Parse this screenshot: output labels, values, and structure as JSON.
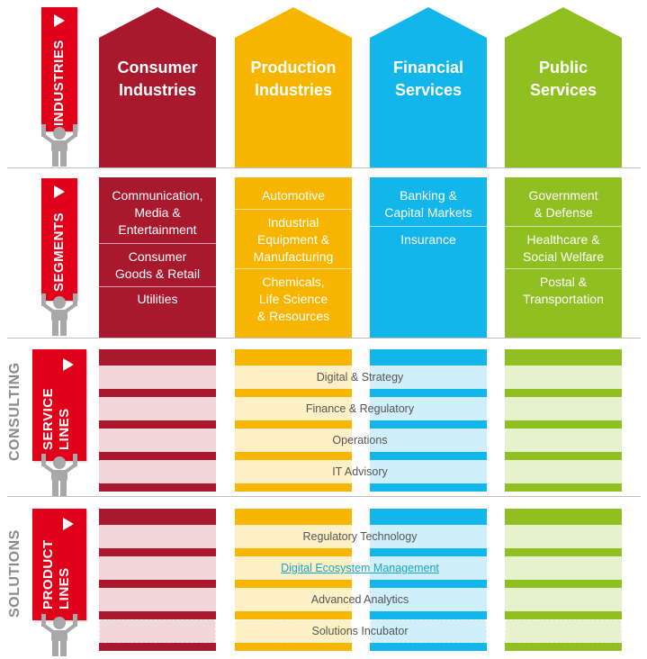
{
  "colors": {
    "consumer": "#a8192e",
    "production": "#f7b500",
    "financial": "#12b6ea",
    "public": "#8fbf20",
    "banner": "#e0001a",
    "link": "#1aa3c8"
  },
  "left": {
    "industries": "INDUSTRIES",
    "segments": "SEGMENTS",
    "consulting": "CONSULTING",
    "service_lines_1": "SERVICE",
    "service_lines_2": "LINES",
    "solutions": "SOLUTIONS",
    "product_lines_1": "PRODUCT",
    "product_lines_2": "LINES"
  },
  "industries": [
    {
      "title_line1": "Consumer",
      "title_line2": "Industries",
      "segments": [
        "Communication,\nMedia &\nEntertainment",
        "Consumer\nGoods & Retail",
        "Utilities"
      ]
    },
    {
      "title_line1": "Production",
      "title_line2": "Industries",
      "segments": [
        "Automotive",
        "Industrial\nEquipment &\nManufacturing",
        "Chemicals,\nLife Science\n& Resources"
      ]
    },
    {
      "title_line1": "Financial",
      "title_line2": "Services",
      "segments": [
        "Banking &\nCapital Markets",
        "Insurance"
      ]
    },
    {
      "title_line1": "Public",
      "title_line2": "Services",
      "segments": [
        "Government\n& Defense",
        "Healthcare &\nSocial Welfare",
        "Postal &\nTransportation"
      ]
    }
  ],
  "service_lines": [
    "Digital & Strategy",
    "Finance & Regulatory",
    "Operations",
    "IT Advisory"
  ],
  "product_lines": [
    "Regulatory Technology",
    "Digital Ecosystem Management",
    "Advanced Analytics",
    "Solutions Incubator"
  ]
}
